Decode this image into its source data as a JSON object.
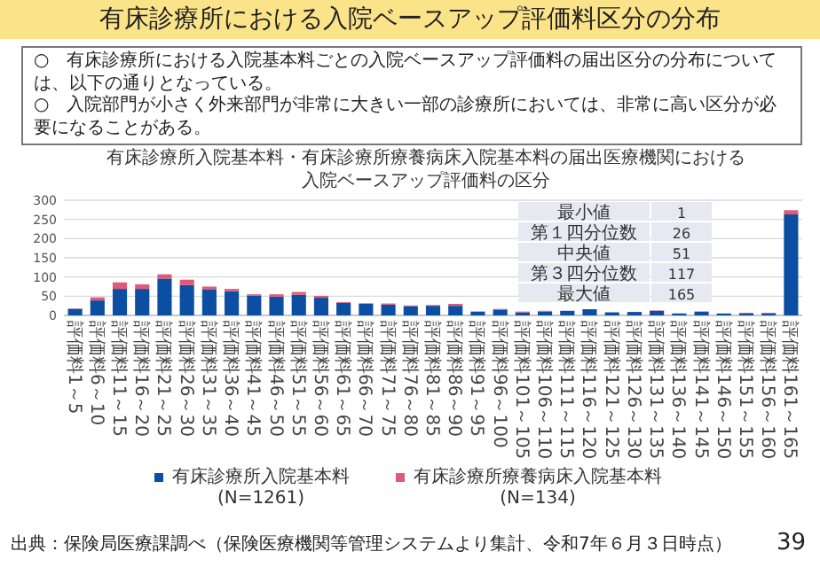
{
  "chart_data": {
    "type": "bar",
    "stacked": true,
    "title": "有床診療所における入院ベースアップ評価料区分の分布",
    "subtitle": "有床診療所入院基本料・有床診療所療養病床入院基本料の届出医療機関における入院ベースアップ評価料の区分",
    "categories": [
      "評価料1～5",
      "評価料6～10",
      "評価料11～15",
      "評価料16～20",
      "評価料21～25",
      "評価料26～30",
      "評価料31～35",
      "評価料36～40",
      "評価料41～45",
      "評価料46～50",
      "評価料51～55",
      "評価料56～60",
      "評価料61～65",
      "評価料66～70",
      "評価料71～75",
      "評価料76～80",
      "評価料81～85",
      "評価料86～90",
      "評価料91～95",
      "評価料96～100",
      "評価料101～105",
      "評価料106～110",
      "評価料111～115",
      "評価料116～120",
      "評価料121～125",
      "評価料126～130",
      "評価料131～135",
      "評価料136～140",
      "評価料141～145",
      "評価料146～150",
      "評価料151～155",
      "評価料156～160",
      "評価料161～165"
    ],
    "series": [
      {
        "name": "有床診療所入院基本料 (N=1261)",
        "color": "#0b4ea2",
        "values": [
          17,
          39,
          69,
          69,
          96,
          79,
          67,
          63,
          52,
          49,
          54,
          46,
          33,
          31,
          28,
          24,
          25,
          25,
          10,
          15,
          8,
          10,
          12,
          16,
          8,
          9,
          12,
          5,
          10,
          5,
          5,
          5,
          263
        ]
      },
      {
        "name": "有床診療所療養病床入院基本料 (N=134)",
        "color": "#e05a78",
        "values": [
          1,
          8,
          17,
          12,
          11,
          14,
          8,
          6,
          3,
          6,
          7,
          5,
          2,
          0,
          3,
          2,
          2,
          5,
          0,
          2,
          2,
          2,
          0,
          0,
          0,
          0,
          1,
          0,
          0,
          0,
          2,
          2,
          11
        ]
      }
    ],
    "ylim": [
      0,
      300
    ],
    "yticks": [
      0,
      50,
      100,
      150,
      200,
      250,
      300
    ],
    "grid": "y",
    "legend": "bottom",
    "annotations": [
      "○　有床診療所における入院基本料ごとの入院ベースアップ評価料の届出区分の分布については、以下の通りとなっている。",
      "○　入院部門が小さく外来部門が非常に大きい一部の診療所においては、非常に高い区分が必要になることがある。",
      "最小値",
      "1",
      "第１四分位数",
      "26",
      "中央値",
      "51",
      "第３四分位数",
      "117",
      "最大値",
      "165",
      "出典：保険局医療課調べ（保険医療機関等管理システムより集計、令和7年６月３日時点）",
      "39"
    ]
  }
}
